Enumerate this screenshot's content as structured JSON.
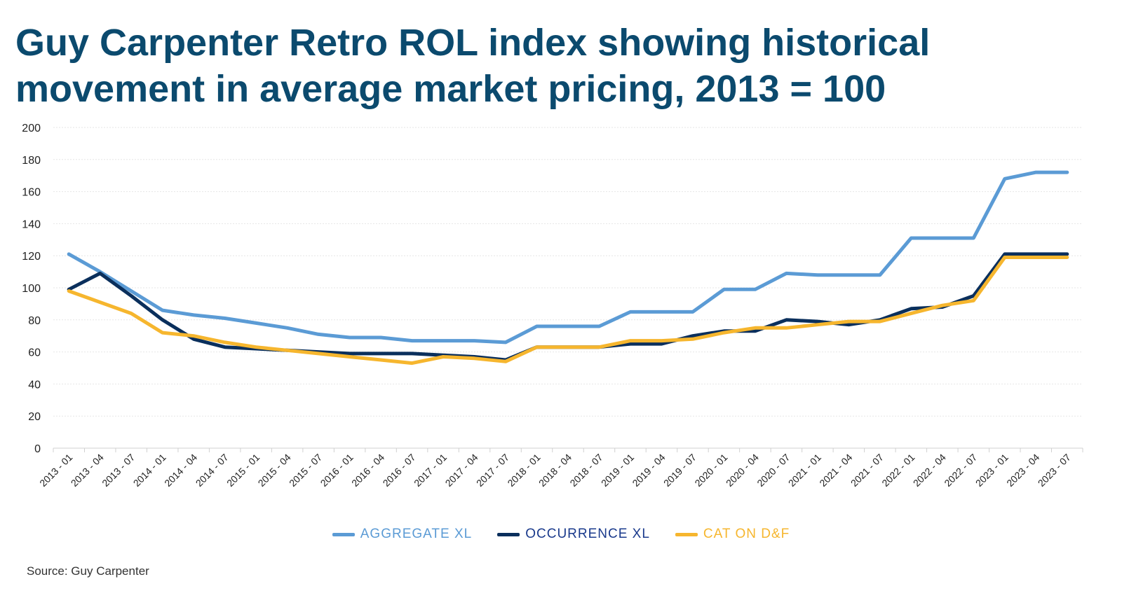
{
  "title_line1": "Guy Carpenter Retro ROL index showing historical",
  "title_line2": "movement in average market pricing, 2013 = 100",
  "source": "Source: Guy Carpenter",
  "colors": {
    "title": "#0b4a6e",
    "aggregate": "#5b9bd5",
    "occurrence": "#0a2f5c",
    "cat": "#f6b62e",
    "grid": "#e6e6e6"
  },
  "chart_data": {
    "type": "line",
    "xlabel": "",
    "ylabel": "",
    "ylim": [
      0,
      200
    ],
    "yticks": [
      0,
      20,
      40,
      60,
      80,
      100,
      120,
      140,
      160,
      180,
      200
    ],
    "grid": true,
    "legend_position": "bottom",
    "categories": [
      "2013 - 01",
      "2013 - 04",
      "2013 - 07",
      "2014 - 01",
      "2014 - 04",
      "2014 - 07",
      "2015 - 01",
      "2015 - 04",
      "2015 - 07",
      "2016 - 01",
      "2016 - 04",
      "2016 - 07",
      "2017 - 01",
      "2017 - 04",
      "2017 - 07",
      "2018 - 01",
      "2018 - 04",
      "2018 - 07",
      "2019 - 01",
      "2019 - 04",
      "2019 - 07",
      "2020 - 01",
      "2020 - 04",
      "2020 - 07",
      "2021 - 01",
      "2021 - 04",
      "2021 - 07",
      "2022 - 01",
      "2022 - 04",
      "2022 - 07",
      "2023 - 01",
      "2023 - 04",
      "2023 - 07"
    ],
    "series": [
      {
        "name": "AGGREGATE XL",
        "values": [
          121,
          110,
          98,
          86,
          83,
          81,
          78,
          75,
          71,
          69,
          69,
          67,
          67,
          67,
          66,
          76,
          76,
          76,
          85,
          85,
          85,
          99,
          99,
          109,
          108,
          108,
          108,
          131,
          131,
          131,
          168,
          172,
          172
        ]
      },
      {
        "name": "OCCURRENCE XL",
        "values": [
          99,
          109,
          95,
          80,
          68,
          63,
          62,
          61,
          60,
          59,
          59,
          59,
          58,
          57,
          55,
          63,
          63,
          63,
          65,
          65,
          70,
          73,
          73,
          80,
          79,
          77,
          80,
          87,
          88,
          95,
          121,
          121,
          121
        ]
      },
      {
        "name": "CAT ON D&F",
        "values": [
          98,
          91,
          84,
          72,
          70,
          66,
          63,
          61,
          59,
          57,
          55,
          53,
          57,
          56,
          54,
          63,
          63,
          63,
          67,
          67,
          68,
          72,
          75,
          75,
          77,
          79,
          79,
          84,
          89,
          92,
          119,
          119,
          119
        ]
      }
    ]
  }
}
